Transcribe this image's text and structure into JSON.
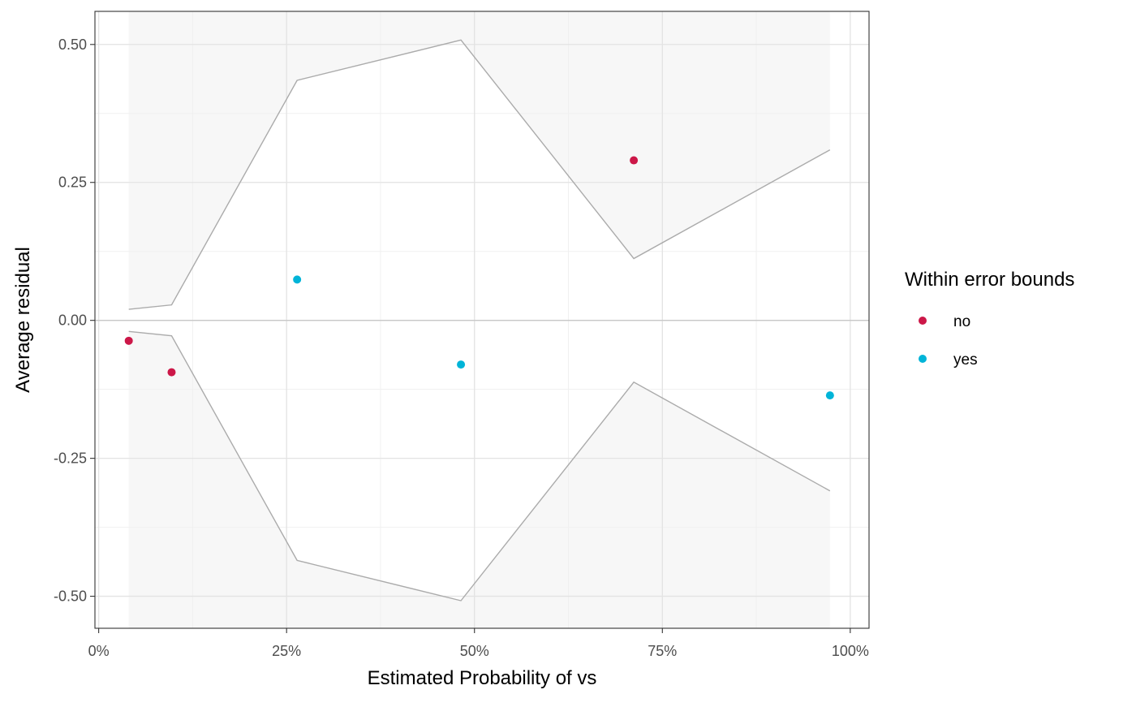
{
  "chart_data": {
    "type": "scatter",
    "xlabel": "Estimated Probability of vs",
    "ylabel": "Average residual",
    "xlim": [
      -0.005,
      1.025
    ],
    "ylim": [
      -0.558,
      0.56
    ],
    "x_ticks": [
      0,
      0.25,
      0.5,
      0.75,
      1
    ],
    "x_tick_labels": [
      "0%",
      "25%",
      "50%",
      "75%",
      "100%"
    ],
    "y_ticks": [
      -0.5,
      -0.25,
      0,
      0.25,
      0.5
    ],
    "y_tick_labels": [
      "-0.50",
      "-0.25",
      "0.00",
      "0.25",
      "0.50"
    ],
    "grid": true,
    "bounds": {
      "x": [
        0.04,
        0.097,
        0.264,
        0.482,
        0.712,
        0.973
      ],
      "upper": [
        0.02,
        0.028,
        0.435,
        0.508,
        0.112,
        0.309
      ],
      "lower": [
        -0.02,
        -0.028,
        -0.435,
        -0.508,
        -0.112,
        -0.309
      ],
      "color": "#ababab",
      "fill": "#f7f7f7"
    },
    "legend": {
      "title": "Within error bounds",
      "position": "right",
      "entries": [
        {
          "label": "no",
          "color": "#cc1748"
        },
        {
          "label": "yes",
          "color": "#00b4d8"
        }
      ]
    },
    "series": [
      {
        "name": "no",
        "color": "#cc1748",
        "x": [
          0.04,
          0.097,
          0.712
        ],
        "y": [
          -0.037,
          -0.094,
          0.29
        ]
      },
      {
        "name": "yes",
        "color": "#00b4d8",
        "x": [
          0.264,
          0.482,
          0.973
        ],
        "y": [
          0.074,
          -0.08,
          -0.136
        ]
      }
    ]
  }
}
